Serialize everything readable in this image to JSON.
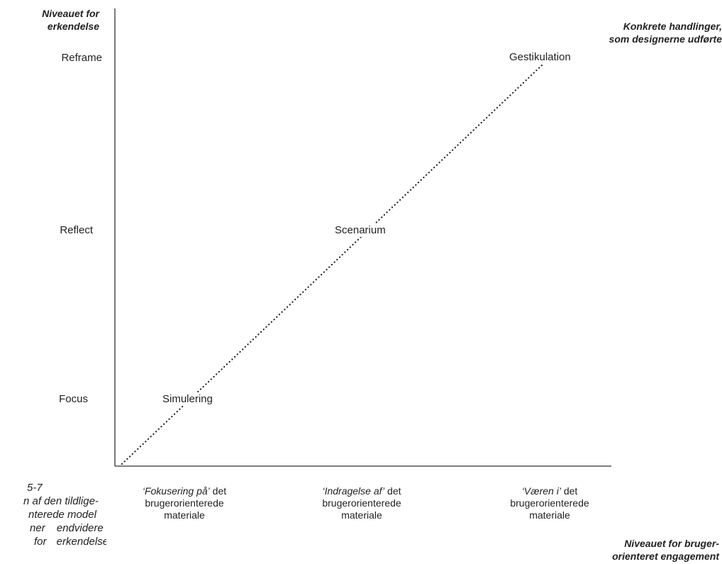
{
  "y_axis_title": [
    "Niveauet for",
    "erkendelse"
  ],
  "right_title": [
    "Konkrete handlinger,",
    "som designerne udførte"
  ],
  "x_axis_title": [
    "Niveauet for bruger-",
    "orienteret engagement"
  ],
  "levels": [
    "Reframe",
    "Reflect",
    "Focus"
  ],
  "actions": [
    "Gestikulation",
    "Scenarium",
    "Simulering"
  ],
  "x_categories": [
    {
      "italic": "‘Fokusering på’",
      "rest": " det",
      "line2": "brugerorienterede",
      "line3": "materiale"
    },
    {
      "italic": "‘Indragelse af’",
      "rest": " det",
      "line2": "brugerorienterede",
      "line3": "materiale"
    },
    {
      "italic": "‘Væren i’",
      "rest": " det",
      "line2": "brugerorienterede",
      "line3": "materiale"
    }
  ],
  "caption": [
    "5-7",
    "n af den tildlige-",
    "nterede model",
    "ner endvidere",
    "for erkendelse"
  ],
  "colors": {
    "text": "#222222",
    "axis": "#333333",
    "dotted": "#222222"
  }
}
